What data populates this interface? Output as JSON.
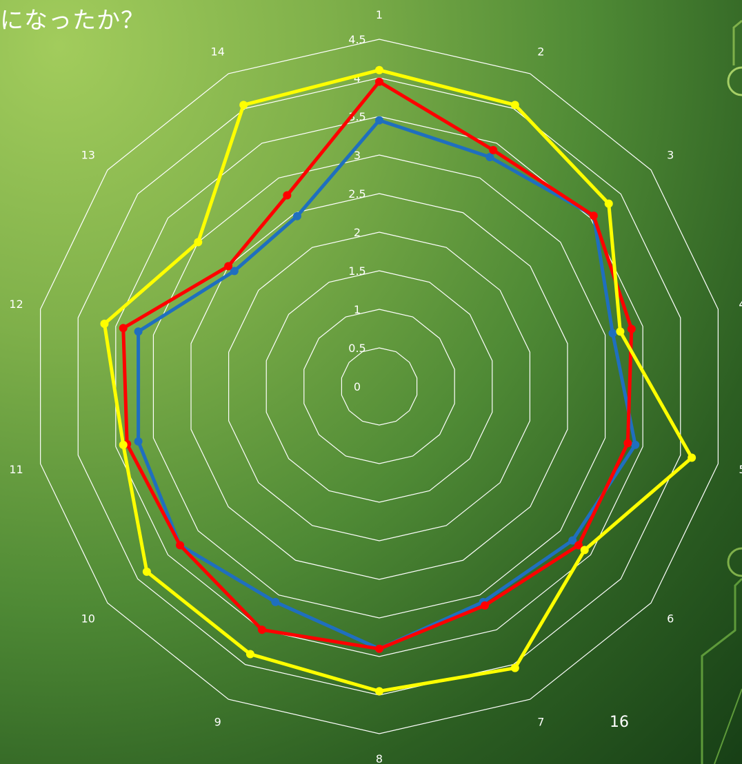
{
  "slide": {
    "title": "になったか？",
    "page_number": "16"
  },
  "chart_data": {
    "type": "radar",
    "categories": [
      "1",
      "2",
      "3",
      "4",
      "5",
      "6",
      "7",
      "8",
      "9",
      "10",
      "11",
      "12",
      "13",
      "14"
    ],
    "rlim": [
      0,
      4.5
    ],
    "ticks": [
      "0",
      "0.5",
      "1",
      "1.5",
      "2",
      "2.5",
      "3",
      "3.5",
      "4",
      "4.5"
    ],
    "grid": true,
    "series": [
      {
        "color": "#1f6fbf",
        "values": [
          3.45,
          3.3,
          3.55,
          3.1,
          3.4,
          3.2,
          3.1,
          3.4,
          3.1,
          3.3,
          3.2,
          3.2,
          2.4,
          2.45
        ]
      },
      {
        "color": "#ff0000",
        "values": [
          3.95,
          3.4,
          3.55,
          3.35,
          3.3,
          3.3,
          3.15,
          3.4,
          3.5,
          3.3,
          3.35,
          3.4,
          2.5,
          2.75
        ]
      },
      {
        "color": "#ffff00",
        "values": [
          4.1,
          4.05,
          3.8,
          3.2,
          4.15,
          3.4,
          4.05,
          3.95,
          3.85,
          3.85,
          3.4,
          3.65,
          3.0,
          4.05
        ]
      }
    ]
  }
}
